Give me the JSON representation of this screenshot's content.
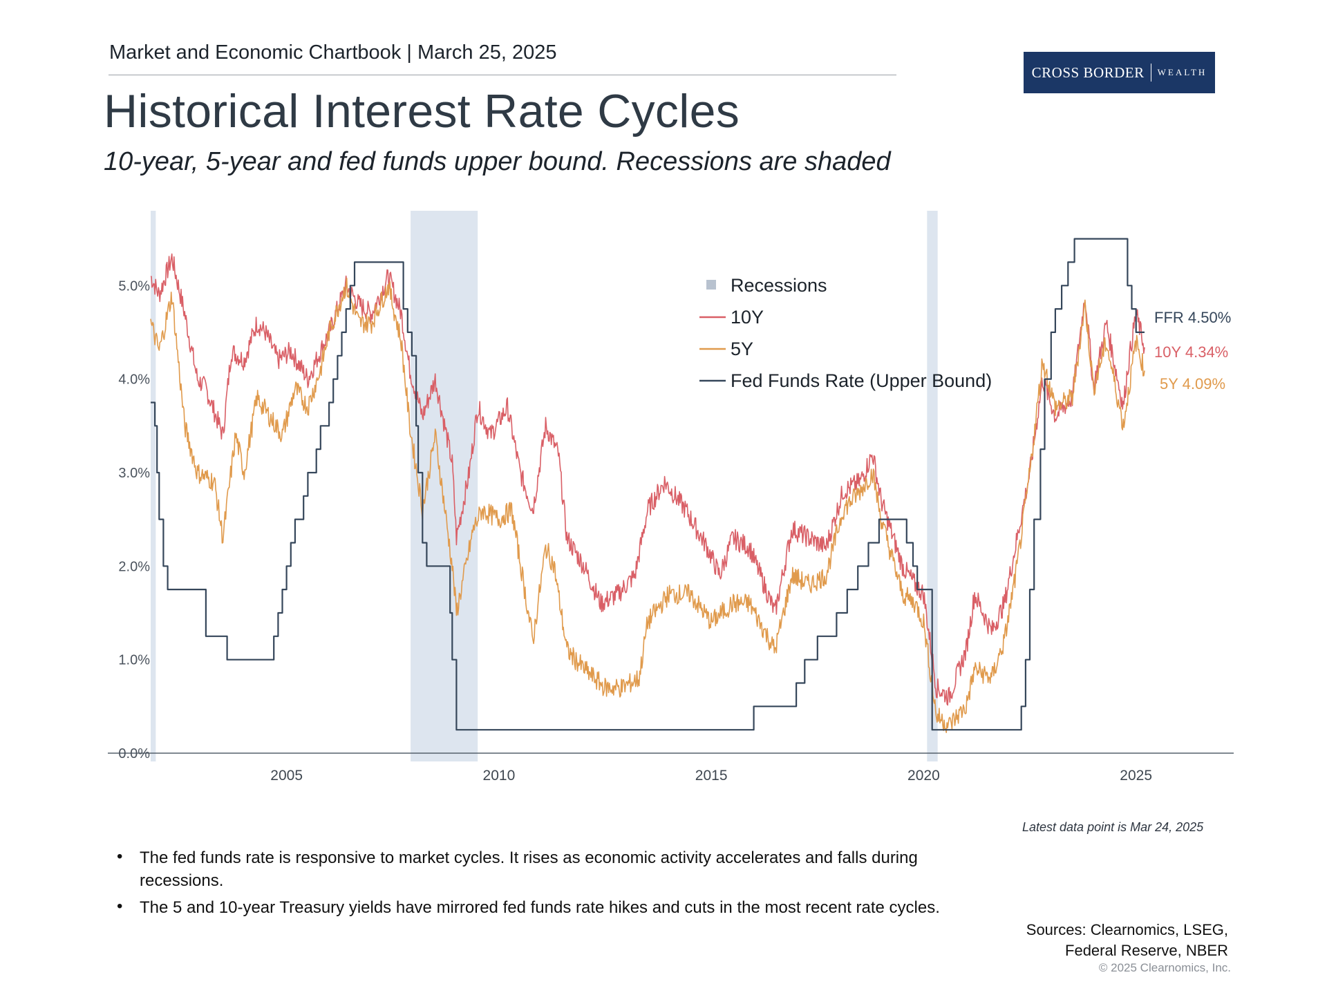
{
  "header": {
    "chartbook": "Market and Economic Chartbook | March 25, 2025",
    "title": "Historical Interest Rate Cycles",
    "subtitle": "10-year, 5-year and fed funds upper bound. Recessions are shaded"
  },
  "logo": {
    "brand": "CROSS BORDER",
    "tagline": "WEALTH",
    "color": "#1b3766"
  },
  "chart_data": {
    "type": "line",
    "xlabel": "",
    "ylabel": "",
    "xlim": [
      2001.8,
      2027.3
    ],
    "ylim": [
      0,
      5.8
    ],
    "x_ticks": [
      2005,
      2010,
      2015,
      2020,
      2025
    ],
    "x_tick_labels": [
      "2005",
      "2010",
      "2015",
      "2020",
      "2025"
    ],
    "y_ticks": [
      0,
      1,
      2,
      3,
      4,
      5
    ],
    "y_tick_labels": [
      "0.0%",
      "1.0%",
      "2.0%",
      "3.0%",
      "4.0%",
      "5.0%"
    ],
    "legend_position": "top-center",
    "recessions": [
      {
        "start": 2001.8,
        "end": 2001.92
      },
      {
        "start": 2007.92,
        "end": 2009.5
      },
      {
        "start": 2020.08,
        "end": 2020.33
      }
    ],
    "series": [
      {
        "name": "10Y",
        "color": "#d95f66",
        "points": [
          [
            2001.8,
            5.1
          ],
          [
            2002.0,
            4.9
          ],
          [
            2002.3,
            5.3
          ],
          [
            2002.6,
            4.7
          ],
          [
            2002.9,
            4.0
          ],
          [
            2003.1,
            3.9
          ],
          [
            2003.5,
            3.4
          ],
          [
            2003.7,
            4.3
          ],
          [
            2004.0,
            4.2
          ],
          [
            2004.3,
            4.6
          ],
          [
            2004.5,
            4.5
          ],
          [
            2004.8,
            4.2
          ],
          [
            2005.1,
            4.3
          ],
          [
            2005.5,
            4.0
          ],
          [
            2005.8,
            4.3
          ],
          [
            2006.0,
            4.5
          ],
          [
            2006.4,
            5.0
          ],
          [
            2006.7,
            4.8
          ],
          [
            2007.0,
            4.7
          ],
          [
            2007.4,
            5.1
          ],
          [
            2007.7,
            4.7
          ],
          [
            2007.9,
            4.1
          ],
          [
            2008.2,
            3.6
          ],
          [
            2008.5,
            4.0
          ],
          [
            2008.9,
            3.1
          ],
          [
            2009.0,
            2.3
          ],
          [
            2009.3,
            3.0
          ],
          [
            2009.5,
            3.7
          ],
          [
            2009.8,
            3.4
          ],
          [
            2010.2,
            3.7
          ],
          [
            2010.5,
            3.0
          ],
          [
            2010.8,
            2.6
          ],
          [
            2011.1,
            3.5
          ],
          [
            2011.4,
            3.2
          ],
          [
            2011.6,
            2.3
          ],
          [
            2012.0,
            2.0
          ],
          [
            2012.4,
            1.6
          ],
          [
            2012.8,
            1.7
          ],
          [
            2013.2,
            1.9
          ],
          [
            2013.5,
            2.6
          ],
          [
            2013.9,
            2.9
          ],
          [
            2014.4,
            2.6
          ],
          [
            2014.9,
            2.2
          ],
          [
            2015.2,
            1.9
          ],
          [
            2015.5,
            2.3
          ],
          [
            2015.9,
            2.2
          ],
          [
            2016.5,
            1.5
          ],
          [
            2016.9,
            2.4
          ],
          [
            2017.3,
            2.3
          ],
          [
            2017.7,
            2.2
          ],
          [
            2018.1,
            2.8
          ],
          [
            2018.5,
            2.9
          ],
          [
            2018.8,
            3.2
          ],
          [
            2019.0,
            2.7
          ],
          [
            2019.5,
            2.0
          ],
          [
            2019.8,
            1.8
          ],
          [
            2020.0,
            1.7
          ],
          [
            2020.3,
            0.7
          ],
          [
            2020.6,
            0.6
          ],
          [
            2021.0,
            1.1
          ],
          [
            2021.2,
            1.7
          ],
          [
            2021.6,
            1.3
          ],
          [
            2021.9,
            1.6
          ],
          [
            2022.2,
            2.3
          ],
          [
            2022.5,
            3.0
          ],
          [
            2022.8,
            4.0
          ],
          [
            2023.1,
            3.6
          ],
          [
            2023.5,
            3.8
          ],
          [
            2023.8,
            4.9
          ],
          [
            2024.0,
            3.9
          ],
          [
            2024.3,
            4.6
          ],
          [
            2024.7,
            3.7
          ],
          [
            2024.8,
            4.1
          ],
          [
            2025.0,
            4.7
          ],
          [
            2025.2,
            4.34
          ]
        ]
      },
      {
        "name": "5Y",
        "color": "#e09a4c",
        "points": [
          [
            2001.8,
            4.6
          ],
          [
            2002.0,
            4.3
          ],
          [
            2002.3,
            4.9
          ],
          [
            2002.6,
            3.5
          ],
          [
            2002.9,
            3.0
          ],
          [
            2003.3,
            2.9
          ],
          [
            2003.5,
            2.3
          ],
          [
            2003.8,
            3.4
          ],
          [
            2004.0,
            3.0
          ],
          [
            2004.3,
            3.8
          ],
          [
            2004.6,
            3.6
          ],
          [
            2004.9,
            3.4
          ],
          [
            2005.2,
            3.9
          ],
          [
            2005.5,
            3.7
          ],
          [
            2005.8,
            4.1
          ],
          [
            2006.0,
            4.5
          ],
          [
            2006.4,
            5.0
          ],
          [
            2006.7,
            4.6
          ],
          [
            2007.0,
            4.6
          ],
          [
            2007.4,
            5.0
          ],
          [
            2007.7,
            4.4
          ],
          [
            2007.9,
            3.5
          ],
          [
            2008.2,
            2.6
          ],
          [
            2008.5,
            3.4
          ],
          [
            2008.9,
            2.0
          ],
          [
            2009.0,
            1.5
          ],
          [
            2009.4,
            2.4
          ],
          [
            2009.6,
            2.6
          ],
          [
            2010.0,
            2.5
          ],
          [
            2010.3,
            2.6
          ],
          [
            2010.8,
            1.2
          ],
          [
            2011.1,
            2.2
          ],
          [
            2011.3,
            2.0
          ],
          [
            2011.6,
            1.1
          ],
          [
            2012.0,
            0.9
          ],
          [
            2012.5,
            0.7
          ],
          [
            2012.9,
            0.7
          ],
          [
            2013.3,
            0.8
          ],
          [
            2013.5,
            1.4
          ],
          [
            2014.0,
            1.7
          ],
          [
            2014.5,
            1.7
          ],
          [
            2015.0,
            1.4
          ],
          [
            2015.5,
            1.6
          ],
          [
            2015.9,
            1.6
          ],
          [
            2016.5,
            1.1
          ],
          [
            2016.9,
            1.9
          ],
          [
            2017.3,
            1.8
          ],
          [
            2017.7,
            1.9
          ],
          [
            2018.1,
            2.6
          ],
          [
            2018.5,
            2.8
          ],
          [
            2018.8,
            3.0
          ],
          [
            2019.0,
            2.5
          ],
          [
            2019.5,
            1.7
          ],
          [
            2019.8,
            1.6
          ],
          [
            2020.0,
            1.4
          ],
          [
            2020.3,
            0.4
          ],
          [
            2020.6,
            0.3
          ],
          [
            2021.0,
            0.5
          ],
          [
            2021.2,
            0.9
          ],
          [
            2021.6,
            0.8
          ],
          [
            2021.9,
            1.2
          ],
          [
            2022.2,
            2.0
          ],
          [
            2022.5,
            3.0
          ],
          [
            2022.8,
            4.2
          ],
          [
            2023.1,
            3.7
          ],
          [
            2023.5,
            3.8
          ],
          [
            2023.8,
            4.8
          ],
          [
            2024.0,
            3.9
          ],
          [
            2024.3,
            4.4
          ],
          [
            2024.7,
            3.5
          ],
          [
            2024.8,
            3.8
          ],
          [
            2025.0,
            4.4
          ],
          [
            2025.2,
            4.09
          ]
        ]
      },
      {
        "name": "Fed Funds Rate (Upper Bound)",
        "color": "#35465a",
        "step": true,
        "points": [
          [
            2001.8,
            3.75
          ],
          [
            2001.9,
            3.5
          ],
          [
            2001.95,
            3.0
          ],
          [
            2002.0,
            2.5
          ],
          [
            2002.1,
            2.0
          ],
          [
            2002.2,
            1.75
          ],
          [
            2003.0,
            1.75
          ],
          [
            2003.1,
            1.25
          ],
          [
            2003.5,
            1.25
          ],
          [
            2003.6,
            1.0
          ],
          [
            2004.6,
            1.0
          ],
          [
            2004.7,
            1.25
          ],
          [
            2004.8,
            1.5
          ],
          [
            2004.9,
            1.75
          ],
          [
            2005.0,
            2.0
          ],
          [
            2005.1,
            2.25
          ],
          [
            2005.2,
            2.5
          ],
          [
            2005.4,
            2.75
          ],
          [
            2005.5,
            3.0
          ],
          [
            2005.7,
            3.25
          ],
          [
            2005.8,
            3.5
          ],
          [
            2006.0,
            3.75
          ],
          [
            2006.1,
            4.0
          ],
          [
            2006.2,
            4.25
          ],
          [
            2006.3,
            4.5
          ],
          [
            2006.4,
            4.75
          ],
          [
            2006.5,
            5.0
          ],
          [
            2006.6,
            5.25
          ],
          [
            2007.7,
            5.25
          ],
          [
            2007.75,
            4.75
          ],
          [
            2007.85,
            4.5
          ],
          [
            2007.95,
            4.25
          ],
          [
            2008.05,
            3.5
          ],
          [
            2008.1,
            3.0
          ],
          [
            2008.2,
            2.25
          ],
          [
            2008.3,
            2.0
          ],
          [
            2008.8,
            2.0
          ],
          [
            2008.85,
            1.5
          ],
          [
            2008.9,
            1.0
          ],
          [
            2009.0,
            0.25
          ],
          [
            2015.95,
            0.25
          ],
          [
            2016.0,
            0.5
          ],
          [
            2016.95,
            0.5
          ],
          [
            2017.0,
            0.75
          ],
          [
            2017.2,
            1.0
          ],
          [
            2017.5,
            1.25
          ],
          [
            2017.95,
            1.5
          ],
          [
            2018.2,
            1.75
          ],
          [
            2018.45,
            2.0
          ],
          [
            2018.7,
            2.25
          ],
          [
            2018.95,
            2.5
          ],
          [
            2019.55,
            2.5
          ],
          [
            2019.6,
            2.25
          ],
          [
            2019.75,
            2.0
          ],
          [
            2019.85,
            1.75
          ],
          [
            2020.15,
            1.75
          ],
          [
            2020.2,
            0.25
          ],
          [
            2022.2,
            0.25
          ],
          [
            2022.3,
            0.5
          ],
          [
            2022.4,
            1.0
          ],
          [
            2022.5,
            1.75
          ],
          [
            2022.6,
            2.5
          ],
          [
            2022.75,
            3.25
          ],
          [
            2022.85,
            4.0
          ],
          [
            2023.0,
            4.5
          ],
          [
            2023.1,
            4.75
          ],
          [
            2023.25,
            5.0
          ],
          [
            2023.4,
            5.25
          ],
          [
            2023.55,
            5.5
          ],
          [
            2024.7,
            5.5
          ],
          [
            2024.8,
            5.0
          ],
          [
            2024.9,
            4.75
          ],
          [
            2025.0,
            4.5
          ],
          [
            2025.2,
            4.5
          ]
        ]
      }
    ],
    "end_labels": [
      {
        "series": "FFR",
        "text": "FFR 4.50%",
        "value": 4.5,
        "color": "#35465a"
      },
      {
        "series": "10Y",
        "text": "10Y 4.34%",
        "value": 4.34,
        "color": "#d95f66"
      },
      {
        "series": "5Y",
        "text": "5Y 4.09%",
        "value": 4.09,
        "color": "#e09a4c"
      }
    ],
    "legend": [
      {
        "label": "Recessions",
        "kind": "square",
        "color": "#b8c2cf"
      },
      {
        "label": "10Y",
        "kind": "line",
        "color": "#d95f66"
      },
      {
        "label": "5Y",
        "kind": "line",
        "color": "#e09a4c"
      },
      {
        "label": "Fed Funds Rate (Upper Bound)",
        "kind": "line",
        "color": "#35465a"
      }
    ],
    "recession_color": "#dde5ef"
  },
  "latest_note": "Latest data point is Mar 24, 2025",
  "bullets": [
    "The fed funds rate is responsive to market cycles. It rises as economic activity accelerates and falls during recessions.",
    "The 5 and 10-year Treasury yields have mirrored fed funds rate hikes and cuts in the most recent rate cycles."
  ],
  "sources": {
    "line1": "Sources: Clearnomics, LSEG,",
    "line2": "Federal Reserve, NBER"
  },
  "copyright": "© 2025 Clearnomics, Inc."
}
